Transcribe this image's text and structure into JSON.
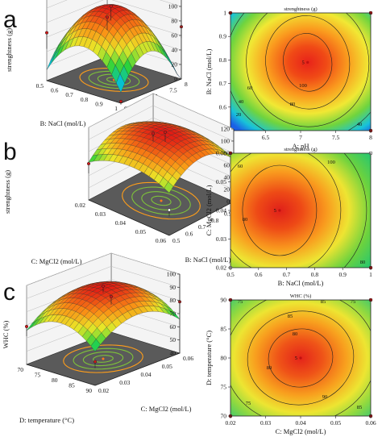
{
  "panels": [
    {
      "letter": "a"
    },
    {
      "letter": "b"
    },
    {
      "letter": "c"
    }
  ],
  "chart_data": [
    {
      "type": "surface",
      "panel": "a",
      "zlabel": "strenghtness (g)",
      "xlabel": "B: NaCl (mol/L)",
      "ylabel": "A: pH",
      "xlim": [
        0.5,
        1.0
      ],
      "ylim": [
        6,
        8
      ],
      "zlim": [
        0,
        120
      ],
      "x_ticks": [
        "1",
        "0.9",
        "0.8",
        "0.7",
        "0.6",
        "0.5"
      ],
      "y_ticks": [
        "6",
        "6.5",
        "7",
        "7.5",
        "8"
      ],
      "z_ticks": [
        "0",
        "20",
        "40",
        "60",
        "80",
        "100",
        "120"
      ],
      "peak": 104
    },
    {
      "type": "contour",
      "panel": "a",
      "title": "strenghtness (g)",
      "xlabel": "A: pH",
      "ylabel": "B: NaCl (mol/L)",
      "xlim": [
        6,
        8
      ],
      "ylim": [
        0.5,
        1.0
      ],
      "x_ticks": [
        "6",
        "6.5",
        "7",
        "7.5",
        "8"
      ],
      "y_ticks": [
        "0.5",
        "0.6",
        "0.7",
        "0.8",
        "0.9",
        "1"
      ],
      "contour_levels": [
        20,
        40,
        60,
        80,
        100
      ],
      "center": {
        "x": 7.15,
        "y": 0.8,
        "label": "5"
      }
    },
    {
      "type": "surface",
      "panel": "b",
      "zlabel": "strenghtness (g)",
      "xlabel": "C: MgCl2 (mol/L)",
      "ylabel": "B: NaCl (mol/L)",
      "xlim": [
        0.02,
        0.06
      ],
      "ylim": [
        0.5,
        1.0
      ],
      "zlim": [
        0,
        120
      ],
      "x_ticks": [
        "0.06",
        "0.05",
        "0.04",
        "0.03",
        "0.02"
      ],
      "y_ticks": [
        "0.5",
        "0.6",
        "0.7",
        "0.8",
        "0.9",
        "1"
      ],
      "z_ticks": [
        "0",
        "20",
        "40",
        "60",
        "80",
        "100",
        "120"
      ],
      "peak": 106
    },
    {
      "type": "contour",
      "panel": "b",
      "title": "strenghtness (g)",
      "xlabel": "B: NaCl (mol/L)",
      "ylabel": "C: MgCl2 (mol/L)",
      "xlim": [
        0.5,
        1.0
      ],
      "ylim": [
        0.02,
        0.06
      ],
      "x_ticks": [
        "0.5",
        "0.6",
        "0.7",
        "0.8",
        "0.9",
        "1"
      ],
      "y_ticks": [
        "0.02",
        "0.03",
        "0.04",
        "0.05",
        "0.06"
      ],
      "contour_levels": [
        60,
        80,
        100
      ],
      "center": {
        "x": 0.75,
        "y": 0.04,
        "label": "5"
      }
    },
    {
      "type": "surface",
      "panel": "c",
      "zlabel": "WHC (%)",
      "xlabel": "D: temperature (°C)",
      "ylabel": "C: MgCl2 (mol/L)",
      "xlim": [
        70,
        90
      ],
      "ylim": [
        0.02,
        0.06
      ],
      "zlim": [
        40,
        100
      ],
      "x_ticks": [
        "90",
        "85",
        "80",
        "75",
        "70"
      ],
      "y_ticks": [
        "0.02",
        "0.03",
        "0.04",
        "0.05",
        "0.06"
      ],
      "z_ticks": [
        "40",
        "50",
        "60",
        "70",
        "80",
        "90",
        "100"
      ],
      "peak": 92
    },
    {
      "type": "contour",
      "panel": "c",
      "title": "WHC (%)",
      "xlabel": "C: MgCl2 (mol/L)",
      "ylabel": "D: temperature (°C)",
      "xlim": [
        0.02,
        0.06
      ],
      "ylim": [
        70,
        90
      ],
      "x_ticks": [
        "0.02",
        "0.03",
        "0.04",
        "0.05",
        "0.06"
      ],
      "y_ticks": [
        "70",
        "75",
        "80",
        "85",
        "90"
      ],
      "contour_levels": [
        75,
        80,
        85,
        90
      ],
      "center": {
        "x": 0.04,
        "y": 80,
        "label": "5"
      }
    }
  ]
}
